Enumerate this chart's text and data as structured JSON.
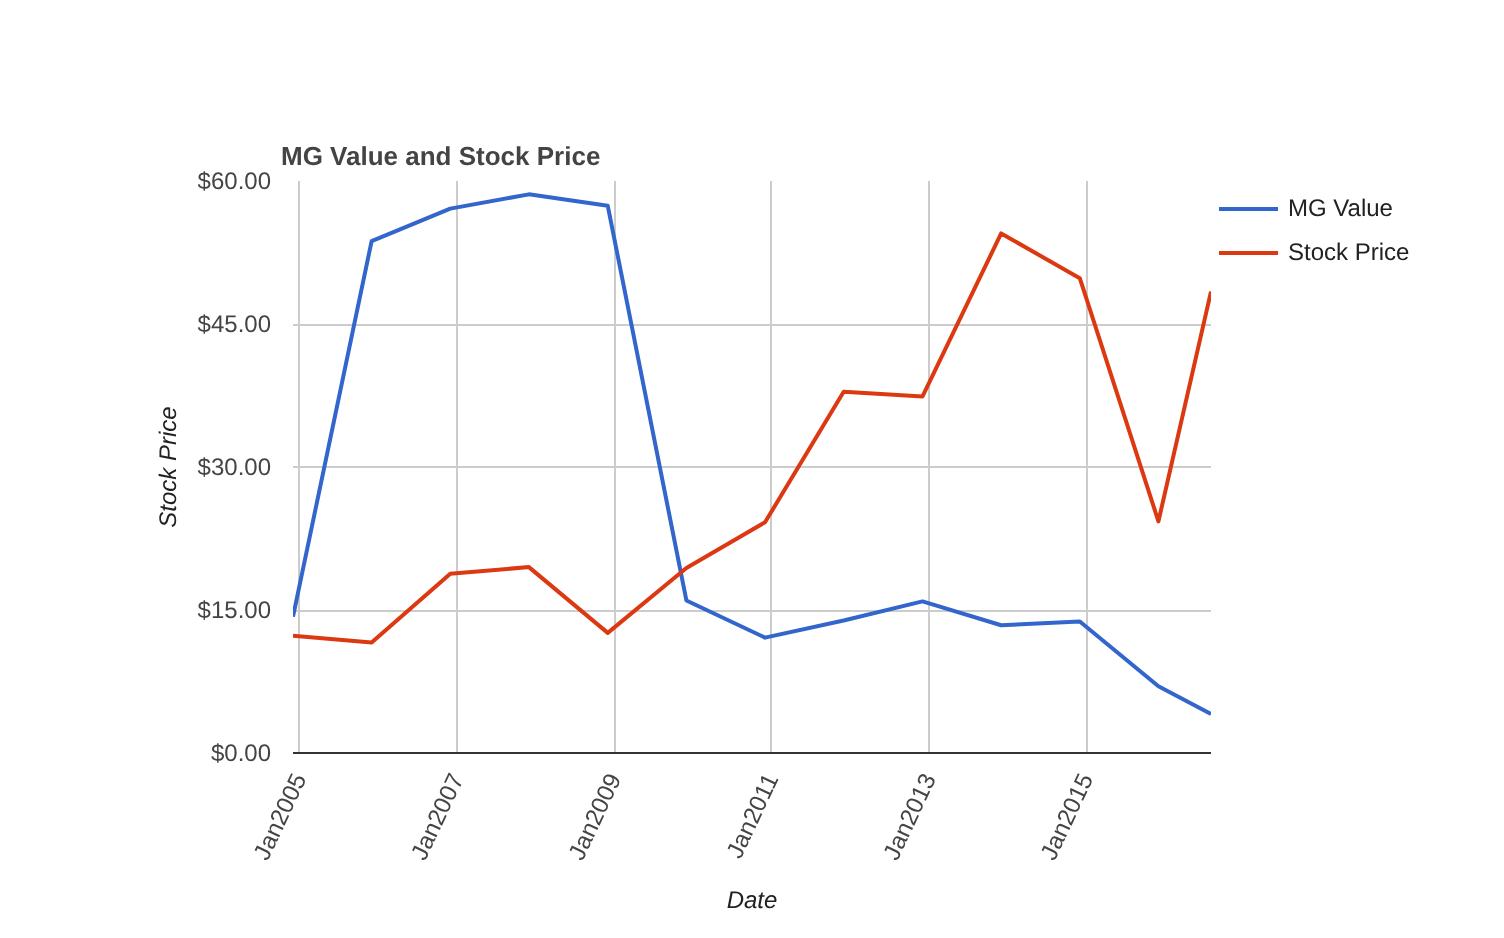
{
  "chart_data": {
    "type": "line",
    "title": "MG Value and Stock Price",
    "xlabel": "Date",
    "ylabel": "Stock Price",
    "x": [
      "2004-12",
      "2005-12",
      "2006-12",
      "2007-12",
      "2008-12",
      "2009-12",
      "2010-12",
      "2011-12",
      "2012-12",
      "2013-12",
      "2014-12",
      "2015-12",
      "2016-08"
    ],
    "series": [
      {
        "name": "MG Value",
        "color": "#3366cc",
        "values": [
          14.3,
          53.7,
          57.1,
          58.6,
          57.4,
          16.0,
          12.1,
          13.9,
          15.9,
          13.4,
          13.8,
          7.0,
          4.1
        ]
      },
      {
        "name": "Stock Price",
        "color": "#dc3912",
        "values": [
          12.3,
          11.6,
          18.8,
          19.5,
          12.6,
          19.4,
          24.2,
          37.9,
          37.4,
          54.5,
          49.8,
          24.3,
          48.4
        ]
      }
    ],
    "xlim": [
      "2004-12",
      "2016-08"
    ],
    "xticks": [
      {
        "value": "2005-01",
        "label": "Jan2005"
      },
      {
        "value": "2007-01",
        "label": "Jan2007"
      },
      {
        "value": "2009-01",
        "label": "Jan2009"
      },
      {
        "value": "2011-01",
        "label": "Jan2011"
      },
      {
        "value": "2013-01",
        "label": "Jan2013"
      },
      {
        "value": "2015-01",
        "label": "Jan2015"
      }
    ],
    "ylim": [
      0,
      60
    ],
    "yticks": [
      {
        "value": 0,
        "label": "$0.00"
      },
      {
        "value": 15,
        "label": "$15.00"
      },
      {
        "value": 30,
        "label": "$30.00"
      },
      {
        "value": 45,
        "label": "$45.00"
      },
      {
        "value": 60,
        "label": "$60.00"
      }
    ],
    "grid": true,
    "legend": "top right",
    "marker": "none",
    "line_style": "solid"
  }
}
